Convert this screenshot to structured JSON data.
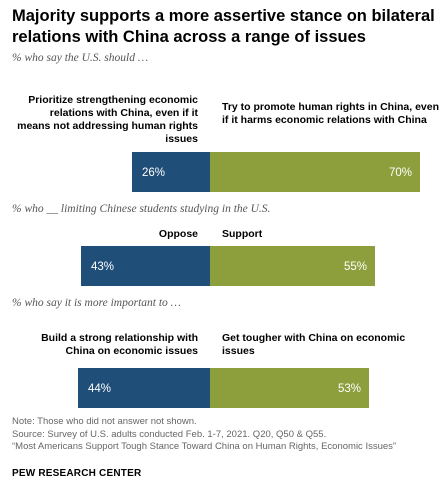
{
  "title": "Majority supports a more assertive stance on bilateral relations with China across a range of issues",
  "colors": {
    "left": "#1f4e79",
    "right": "#8c9f3c"
  },
  "chart_data": [
    {
      "type": "bar",
      "subtitle": "% who say the U.S. should …",
      "categories": [
        "Prioritize strengthening economic relations with China, even if it means not addressing human rights issues",
        "Try to promote human rights in China, even if it harms economic relations with China"
      ],
      "values": [
        26,
        70
      ],
      "value_labels": [
        "26%",
        "70%"
      ]
    },
    {
      "type": "bar",
      "subtitle": "% who __ limiting Chinese students studying in the U.S.",
      "categories": [
        "Oppose",
        "Support"
      ],
      "values": [
        43,
        55
      ],
      "value_labels": [
        "43%",
        "55%"
      ]
    },
    {
      "type": "bar",
      "subtitle": "% who say it is more important to …",
      "categories": [
        "Build a strong relationship with China on economic issues",
        "Get tougher with China on economic issues"
      ],
      "values": [
        44,
        53
      ],
      "value_labels": [
        "44%",
        "53%"
      ]
    }
  ],
  "notes": {
    "note": "Note: Those who did not answer not shown.",
    "source": "Source: Survey of U.S. adults conducted Feb. 1-7, 2021. Q20, Q50 & Q55.",
    "report": "“Most Americans Support Tough Stance Toward China on Human Rights, Economic Issues”"
  },
  "brand": "PEW RESEARCH CENTER"
}
